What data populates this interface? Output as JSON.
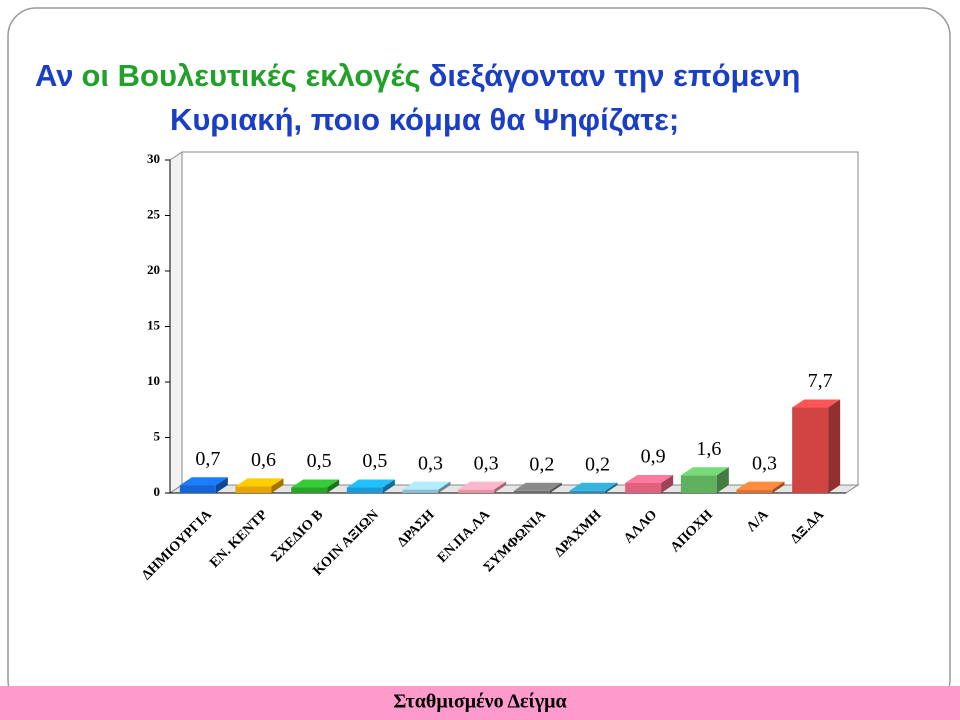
{
  "chart_data": {
    "type": "bar",
    "title": [
      [
        {
          "text": "Αν",
          "color": "#1b3fc4"
        },
        {
          "text": "οι Βουλευτικές εκλογές",
          "color": "#23a02a"
        },
        {
          "text": "διεξάγονταν την επόμενη",
          "color": "#1b3fc4"
        }
      ],
      [
        {
          "text": "Κυριακή, ποιο κόμμα θα Ψηφίζατε;",
          "color": "#1b3fc4"
        }
      ]
    ],
    "categories": [
      "ΔΗΜΙΟΥΡΓΙΑ",
      "ΕΝ. ΚΕΝΤΡ",
      "ΣΧΕΔΙΟ Β",
      "ΚΟΙΝ ΑΞΙΩΝ",
      "ΔΡΑΣΗ",
      "ΕΝ.ΠΑ.ΛΑ",
      "ΣΥΜΦΩΝΙΑ",
      "ΔΡΑΧΜΗ",
      "ΑΛΛΟ",
      "ΑΠΟΧΗ",
      "Λ/Α",
      "ΔΞ.ΔΑ"
    ],
    "values": [
      0.7,
      0.6,
      0.5,
      0.5,
      0.3,
      0.3,
      0.2,
      0.2,
      0.9,
      1.6,
      0.3,
      7.7
    ],
    "value_labels": [
      "0,7",
      "0,6",
      "0,5",
      "0,5",
      "0,3",
      "0,3",
      "0,2",
      "0,2",
      "0,9",
      "1,6",
      "0,3",
      "7,7"
    ],
    "colors": [
      "#1565d8",
      "#e8a400",
      "#2aa32a",
      "#1a9ad6",
      "#8fbcd2",
      "#e892a2",
      "#6e6e6e",
      "#2a90b2",
      "#e0607e",
      "#5fb05f",
      "#e07030",
      "#d04444"
    ],
    "ylim": [
      0,
      30
    ],
    "yticks": [
      0,
      5,
      10,
      15,
      20,
      25,
      30
    ],
    "footer": "Σταθμισμένο Δείγμα"
  }
}
